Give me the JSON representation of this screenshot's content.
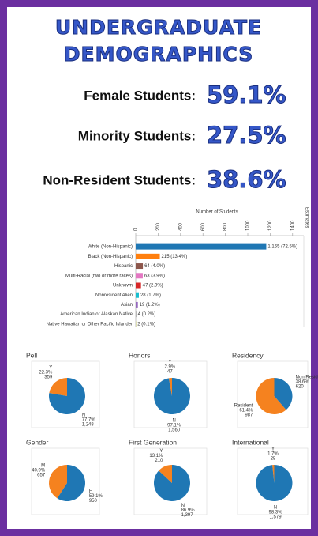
{
  "header": {
    "title_lines": [
      "UNDERGRADUATE",
      "DEMOGRAPHICS"
    ]
  },
  "stats": [
    {
      "label": "Female Students:",
      "value": "59.1%"
    },
    {
      "label": "Minority Students:",
      "value": "27.5%"
    },
    {
      "label": "Non-Resident Students:",
      "value": "38.6%"
    }
  ],
  "chart_data": [
    {
      "type": "hbar",
      "x_label": "Number of Students",
      "side_label": "Estimates",
      "categories": [
        "White (Non-Hispanic)",
        "Black (Non-Hispanic)",
        "Hispanic",
        "Multi-Racial (two or more races)",
        "Unknown",
        "Nonresident Alien",
        "Asian",
        "American Indian or Alaskan Native",
        "Native Hawaiian or Other Pacific Islander"
      ],
      "values": [
        1165,
        215,
        64,
        63,
        47,
        28,
        19,
        4,
        2
      ],
      "value_labels": [
        "1,165 (72.5%)",
        "215 (13.4%)",
        "64 (4.0%)",
        "63 (3.9%)",
        "47 (2.9%)",
        "28 (1.7%)",
        "19 (1.2%)",
        "4 (0.2%)",
        "2 (0.1%)"
      ],
      "colors": [
        "#1f77b4",
        "#ff7f0e",
        "#8c564b",
        "#e377c2",
        "#d62728",
        "#17becf",
        "#9467bd",
        "#7f7f7f",
        "#bcbd22"
      ],
      "xlim": [
        0,
        1500
      ],
      "xticks": [
        0,
        200,
        400,
        600,
        800,
        1000,
        1200,
        1400
      ]
    },
    {
      "type": "pie",
      "title": "Pell",
      "categories": [
        "Y",
        "N"
      ],
      "values": [
        22.3,
        77.7
      ],
      "value_labels": [
        "22.3%",
        "77.7%"
      ],
      "counts": [
        359,
        1248
      ],
      "count_labels": [
        "359",
        "1,248"
      ],
      "colors": [
        "#f5821f",
        "#1f77b4"
      ]
    },
    {
      "type": "pie",
      "title": "Honors",
      "categories": [
        "Y",
        "N"
      ],
      "values": [
        2.9,
        97.1
      ],
      "value_labels": [
        "2.9%",
        "97.1%"
      ],
      "counts": [
        47,
        1560
      ],
      "count_labels": [
        "47",
        "1,560"
      ],
      "colors": [
        "#f5821f",
        "#1f77b4"
      ]
    },
    {
      "type": "pie",
      "title": "Residency",
      "categories": [
        "Resident",
        "Non Resident"
      ],
      "values": [
        61.4,
        38.6
      ],
      "value_labels": [
        "61.4%",
        "38.6%"
      ],
      "counts": [
        987,
        620
      ],
      "count_labels": [
        "987",
        "620"
      ],
      "colors": [
        "#f5821f",
        "#1f77b4"
      ]
    },
    {
      "type": "pie",
      "title": "Gender",
      "categories": [
        "M",
        "F"
      ],
      "values": [
        40.9,
        59.1
      ],
      "value_labels": [
        "40.9%",
        "59.1%"
      ],
      "counts": [
        657,
        950
      ],
      "count_labels": [
        "657",
        "950"
      ],
      "colors": [
        "#f5821f",
        "#1f77b4"
      ]
    },
    {
      "type": "pie",
      "title": "First Generation",
      "categories": [
        "Y",
        "N"
      ],
      "values": [
        13.1,
        86.9
      ],
      "value_labels": [
        "13.1%",
        "86.9%"
      ],
      "counts": [
        210,
        1397
      ],
      "count_labels": [
        "210",
        "1,397"
      ],
      "colors": [
        "#f5821f",
        "#1f77b4"
      ]
    },
    {
      "type": "pie",
      "title": "International",
      "categories": [
        "Y",
        "N"
      ],
      "values": [
        1.7,
        98.3
      ],
      "value_labels": [
        "1.7%",
        "98.3%"
      ],
      "counts": [
        28,
        1579
      ],
      "count_labels": [
        "28",
        "1,579"
      ],
      "colors": [
        "#f5821f",
        "#1f77b4"
      ]
    }
  ]
}
